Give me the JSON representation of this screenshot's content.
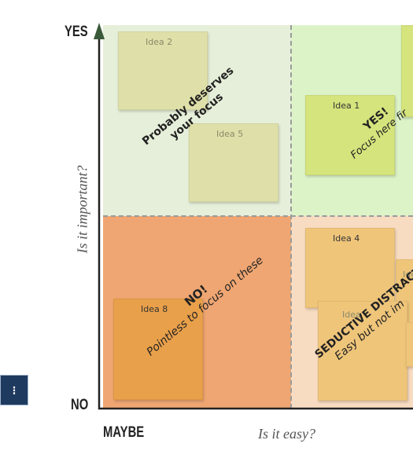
{
  "axes": {
    "y_top": "YES",
    "y_bottom": "NO",
    "x_left": "MAYBE",
    "y_title": "Is it important?",
    "x_title": "Is it easy?"
  },
  "quadrants": {
    "top_left": {
      "title": "Probably deserves",
      "title2": "your focus",
      "color": "#e6efd9"
    },
    "top_right": {
      "title": "YES!",
      "subtitle": "Focus here fir",
      "color": "#dcf3c8"
    },
    "bottom_left": {
      "title": "NO!",
      "subtitle": "Pointless to focus on these",
      "color": "#efa672"
    },
    "bottom_right": {
      "title": "SEDUCTIVE DISTRACT",
      "subtitle": "Easy but not im",
      "color": "#f8dcc2"
    }
  },
  "ideas": [
    {
      "label": "Idea 2",
      "color": "#dfe0a9"
    },
    {
      "label": "Idea 5",
      "color": "#dfe0a9"
    },
    {
      "label": "Idea 1",
      "color": "#d5e47c"
    },
    {
      "label": "Idea 4",
      "color": "#efc57a"
    },
    {
      "label": "Idea",
      "color": "#efc57a"
    },
    {
      "label": "Idea",
      "color": "#efc57a"
    },
    {
      "label": "Idea 8",
      "color": "#e9a04a"
    }
  ],
  "side_button": {
    "label": "⁝"
  }
}
